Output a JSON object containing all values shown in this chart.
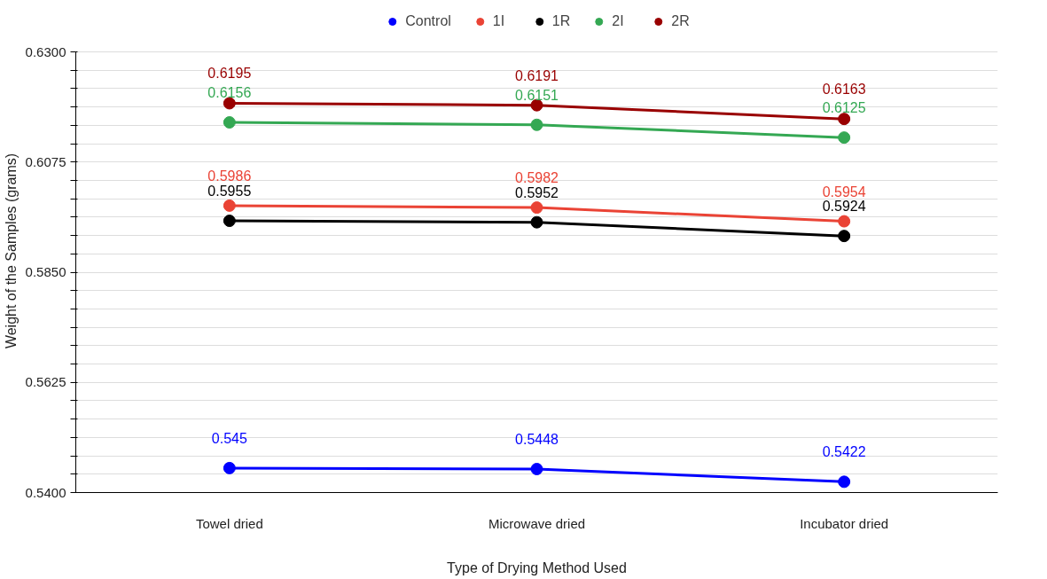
{
  "chart_data": {
    "type": "line",
    "xlabel": "Type of Drying Method Used",
    "ylabel": "Weight of the Samples (grams)",
    "categories": [
      "Towel dried",
      "Microwave dried",
      "Incubator dried"
    ],
    "series": [
      {
        "name": "Control",
        "color": "#0000ff",
        "values": [
          0.545,
          0.5448,
          0.5422
        ]
      },
      {
        "name": "1I",
        "color": "#ea4335",
        "values": [
          0.5986,
          0.5982,
          0.5954
        ]
      },
      {
        "name": "1R",
        "color": "#000000",
        "values": [
          0.5955,
          0.5952,
          0.5924
        ]
      },
      {
        "name": "2I",
        "color": "#34a853",
        "values": [
          0.6156,
          0.6151,
          0.6125
        ]
      },
      {
        "name": "2R",
        "color": "#990000",
        "values": [
          0.6195,
          0.6191,
          0.6163
        ]
      }
    ],
    "ylim": [
      0.54,
      0.63
    ],
    "yticks": [
      {
        "value": 0.54,
        "label": "0.5400"
      },
      {
        "value": 0.54375,
        "label": null
      },
      {
        "value": 0.5475,
        "label": null
      },
      {
        "value": 0.55125,
        "label": null
      },
      {
        "value": 0.555,
        "label": null
      },
      {
        "value": 0.55875,
        "label": null
      },
      {
        "value": 0.5625,
        "label": "0.5625"
      },
      {
        "value": 0.56625,
        "label": null
      },
      {
        "value": 0.57,
        "label": null
      },
      {
        "value": 0.57375,
        "label": null
      },
      {
        "value": 0.5775,
        "label": null
      },
      {
        "value": 0.58125,
        "label": null
      },
      {
        "value": 0.585,
        "label": "0.5850"
      },
      {
        "value": 0.58875,
        "label": null
      },
      {
        "value": 0.5925,
        "label": null
      },
      {
        "value": 0.59625,
        "label": null
      },
      {
        "value": 0.6,
        "label": null
      },
      {
        "value": 0.60375,
        "label": null
      },
      {
        "value": 0.6075,
        "label": "0.6075"
      },
      {
        "value": 0.61125,
        "label": null
      },
      {
        "value": 0.615,
        "label": null
      },
      {
        "value": 0.61875,
        "label": null
      },
      {
        "value": 0.6225,
        "label": null
      },
      {
        "value": 0.62625,
        "label": null
      },
      {
        "value": 0.63,
        "label": "0.6300"
      }
    ],
    "grid": "y",
    "legend": "top",
    "marker": "circle",
    "line_style": "solid",
    "data_labels": true
  }
}
